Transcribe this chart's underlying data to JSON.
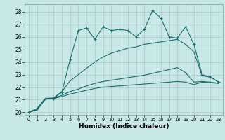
{
  "xlabel": "Humidex (Indice chaleur)",
  "background_color": "#c8e8e8",
  "grid_color": "#b0c8c8",
  "line_color": "#1a6b6b",
  "xlim": [
    -0.5,
    23.5
  ],
  "ylim": [
    19.8,
    28.6
  ],
  "yticks": [
    20,
    21,
    22,
    23,
    24,
    25,
    26,
    27,
    28
  ],
  "xticks": [
    0,
    1,
    2,
    3,
    4,
    5,
    6,
    7,
    8,
    9,
    10,
    11,
    12,
    13,
    14,
    15,
    16,
    17,
    18,
    19,
    20,
    21,
    22,
    23
  ],
  "series1_y": [
    20.0,
    20.3,
    21.1,
    21.1,
    21.6,
    24.2,
    26.5,
    26.7,
    25.8,
    26.8,
    26.5,
    26.6,
    26.5,
    26.0,
    26.6,
    28.1,
    27.5,
    26.0,
    25.9,
    26.8,
    25.4,
    23.0,
    22.8,
    22.4
  ],
  "series2_y": [
    20.0,
    20.3,
    21.1,
    21.15,
    21.65,
    22.5,
    23.0,
    23.5,
    24.0,
    24.4,
    24.7,
    24.9,
    25.1,
    25.2,
    25.4,
    25.5,
    25.6,
    25.7,
    25.8,
    25.4,
    24.8,
    22.9,
    22.8,
    22.4
  ],
  "series3_y": [
    20.0,
    20.2,
    21.05,
    21.1,
    21.35,
    21.65,
    21.85,
    22.1,
    22.3,
    22.45,
    22.55,
    22.65,
    22.75,
    22.85,
    22.95,
    23.1,
    23.25,
    23.4,
    23.55,
    23.15,
    22.4,
    22.45,
    22.4,
    22.3
  ],
  "series4_y": [
    20.0,
    20.2,
    21.05,
    21.1,
    21.25,
    21.45,
    21.6,
    21.75,
    21.9,
    22.0,
    22.05,
    22.1,
    22.15,
    22.2,
    22.25,
    22.3,
    22.35,
    22.4,
    22.45,
    22.4,
    22.2,
    22.4,
    22.35,
    22.3
  ]
}
